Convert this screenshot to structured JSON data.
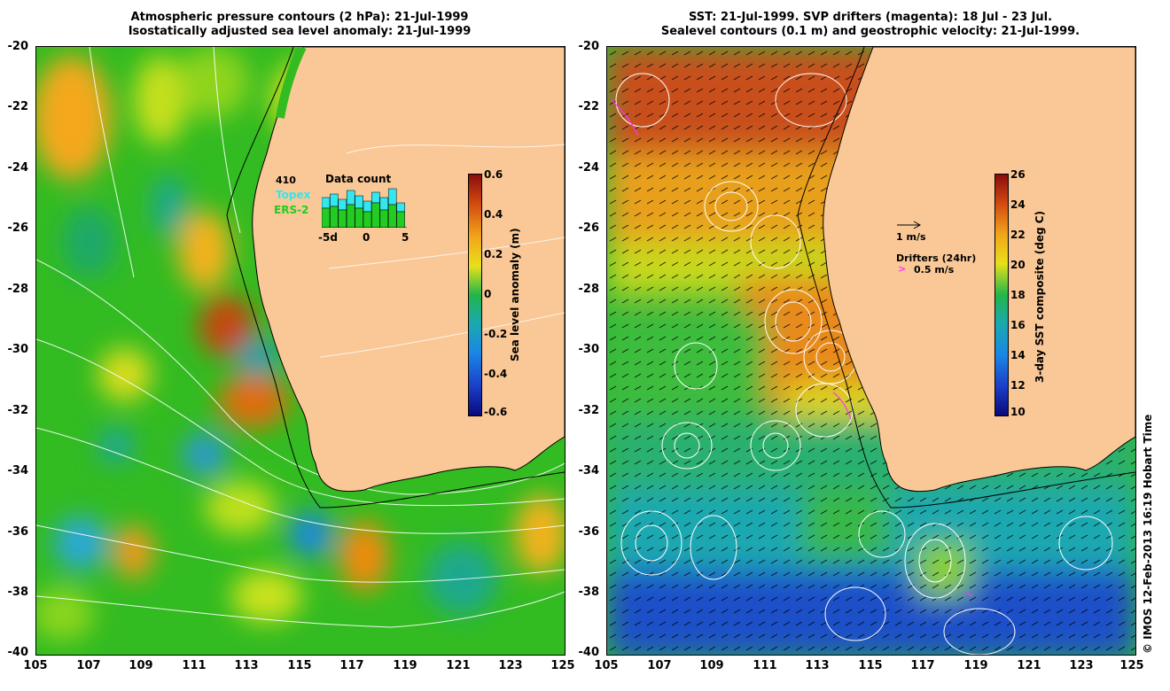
{
  "left_panel": {
    "title_line1": "Atmospheric pressure contours (2 hPa): 21-Jul-1999",
    "title_line2": "Isostatically adjusted sea level anomaly: 21-Jul-1999",
    "colorbar_label": "Sea level anomaly (m)",
    "colorbar_ticks": [
      "0.6",
      "0.4",
      "0.2",
      "0",
      "-0.2",
      "-0.4",
      "-0.6"
    ],
    "data_count": {
      "title": "Data count",
      "max_label": "410",
      "series": [
        "Topex",
        "ERS-2"
      ],
      "series_colors": [
        "#33e6f0",
        "#22cc22"
      ],
      "x_ticks": [
        "-5d",
        "0",
        "5"
      ]
    }
  },
  "right_panel": {
    "title_line1": "SST: 21-Jul-1999. SVP drifters (magenta): 18 Jul - 23 Jul.",
    "title_line2": "Sealevel contours (0.1 m) and geostrophic velocity: 21-Jul-1999.",
    "colorbar_label": "3-day SST composite (deg C)",
    "colorbar_ticks": [
      "26",
      "24",
      "22",
      "20",
      "18",
      "16",
      "14",
      "12",
      "10"
    ],
    "velocity_scale_label": "1 m/s",
    "drifters_title": "Drifters (24hr)",
    "drifters_scale_label": "0.5 m/s"
  },
  "y_ticks": [
    "-20",
    "-22",
    "-24",
    "-26",
    "-28",
    "-30",
    "-32",
    "-34",
    "-36",
    "-38",
    "-40"
  ],
  "x_ticks": [
    "105",
    "107",
    "109",
    "111",
    "113",
    "115",
    "117",
    "119",
    "121",
    "123",
    "125"
  ],
  "credit": "© IMOS 12-Feb-2013 16:19 Hobart Time",
  "colors": {
    "land": "#f9c896",
    "coast": "#000000",
    "drifter": "#ff33ff"
  }
}
